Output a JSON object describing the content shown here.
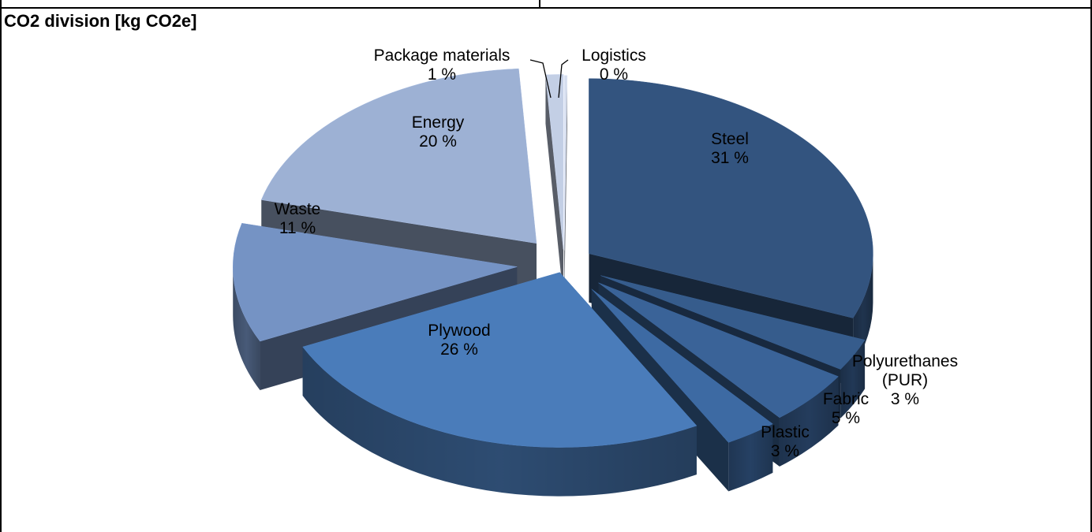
{
  "chart_data": {
    "type": "pie",
    "title": "CO2 division [kg CO2e]",
    "exploded": true,
    "three_d": true,
    "slices": [
      {
        "label": [
          "Steel"
        ],
        "pct_label": "31 %",
        "value": 31,
        "color": "#33547f"
      },
      {
        "label": [
          "Polyurethanes",
          "(PUR)"
        ],
        "pct_label": "3 %",
        "value": 3,
        "color": "#365c8c"
      },
      {
        "label": [
          "Fabric"
        ],
        "pct_label": "5 %",
        "value": 5,
        "color": "#3a6398"
      },
      {
        "label": [
          "Plastic"
        ],
        "pct_label": "3 %",
        "value": 3,
        "color": "#3d6aa3"
      },
      {
        "label": [
          "Plywood"
        ],
        "pct_label": "26 %",
        "value": 26,
        "color": "#4a7cba"
      },
      {
        "label": [
          "Waste"
        ],
        "pct_label": "11 %",
        "value": 11,
        "color": "#7593c4"
      },
      {
        "label": [
          "Energy"
        ],
        "pct_label": "20 %",
        "value": 20,
        "color": "#9db1d4"
      },
      {
        "label": [
          "Package materials"
        ],
        "pct_label": "1 %",
        "value": 1,
        "color": "#c3cfe5"
      },
      {
        "label": [
          "Logistics"
        ],
        "pct_label": "0 %",
        "value": 0,
        "color": "#d6deee"
      }
    ]
  }
}
